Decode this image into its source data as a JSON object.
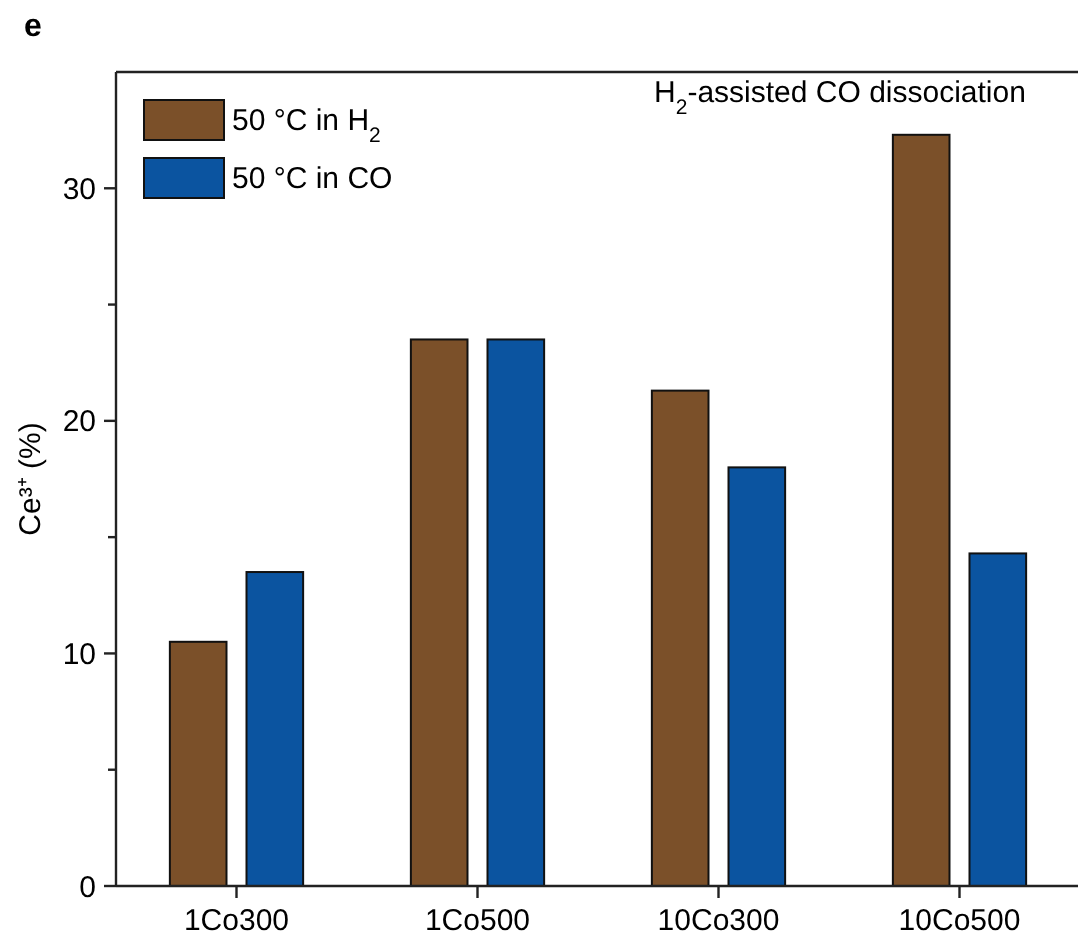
{
  "chart_data": {
    "type": "bar",
    "categories": [
      "1Co300",
      "1Co500",
      "10Co300",
      "10Co500"
    ],
    "series": [
      {
        "name": "50 °C in H$_{2}$",
        "color": "#7b5029",
        "values": [
          10.5,
          23.5,
          21.3,
          32.3
        ]
      },
      {
        "name": "50 °C in CO",
        "color": "#0b54a0",
        "values": [
          13.5,
          23.5,
          18.0,
          14.3
        ]
      }
    ],
    "ylabel": "Ce³⁺ (%)",
    "ylim": [
      0,
      35
    ],
    "yticks": [
      0,
      {
        "value": 5,
        "label": null
      },
      10,
      {
        "value": 15,
        "label": null
      },
      20,
      {
        "value": 25,
        "label": null
      },
      30
    ],
    "annotations": [
      "e",
      "H$_{2}$-assisted CO dissociation"
    ],
    "legend": "top left",
    "grid": false
  }
}
